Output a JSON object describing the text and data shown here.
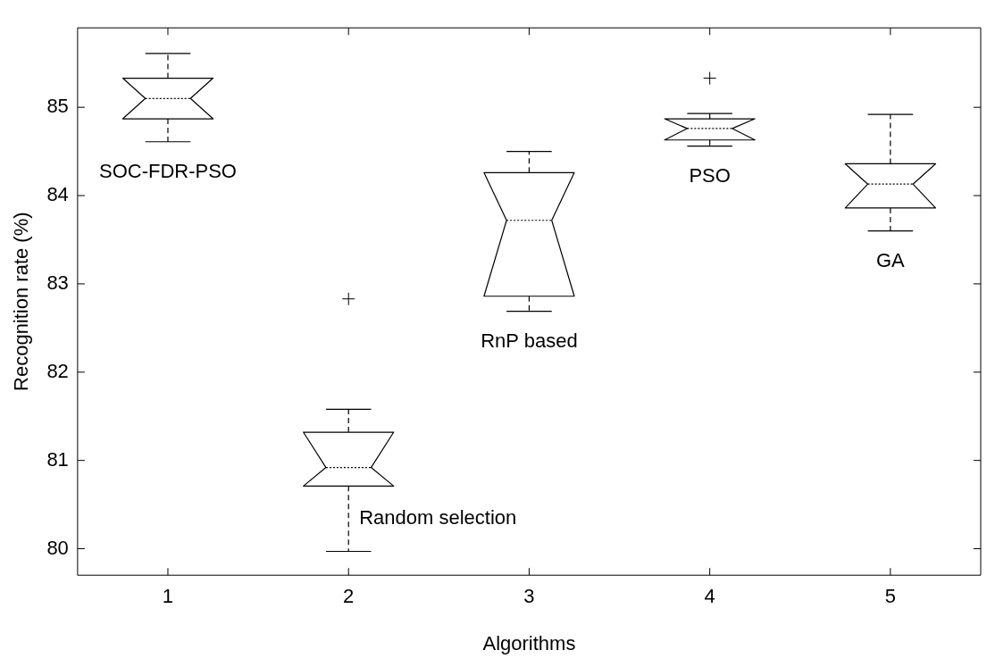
{
  "chart_data": {
    "type": "box",
    "xlabel": "Algorithms",
    "ylabel": "Recognition rate (%)",
    "categories": [
      "1",
      "2",
      "3",
      "4",
      "5"
    ],
    "boxes": [
      {
        "low": 84.61,
        "q1": 84.87,
        "median": 85.1,
        "q3": 85.33,
        "high": 85.61
      },
      {
        "low": 79.97,
        "q1": 80.71,
        "median": 80.92,
        "q3": 81.32,
        "high": 81.58,
        "outliers": [
          82.83
        ]
      },
      {
        "low": 82.69,
        "q1": 82.86,
        "median": 83.72,
        "q3": 84.26,
        "high": 84.5
      },
      {
        "low": 84.56,
        "q1": 84.63,
        "median": 84.76,
        "q3": 84.87,
        "high": 84.93,
        "outliers": [
          85.33
        ]
      },
      {
        "low": 83.6,
        "q1": 83.86,
        "median": 84.13,
        "q3": 84.36,
        "high": 84.92
      }
    ],
    "color": "#000000",
    "ylim": [
      79.7,
      85.9
    ],
    "yticks": [
      80,
      81,
      82,
      83,
      84,
      85
    ],
    "grid": false,
    "legend": false,
    "annotations": [
      "SOC-FDR-PSO",
      "Random selection",
      "RnP based",
      "PSO",
      "GA"
    ]
  }
}
